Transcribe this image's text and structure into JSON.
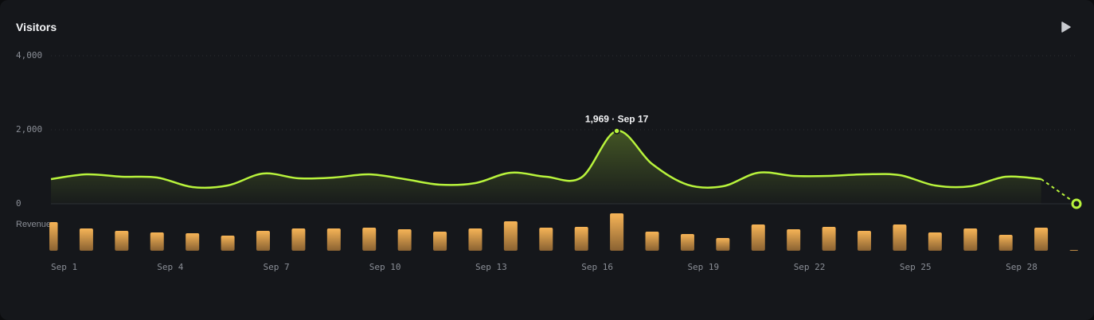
{
  "chart_data": {
    "type": "line",
    "title": "Visitors",
    "categories": [
      "Sep 1",
      null,
      null,
      "Sep 4",
      null,
      null,
      "Sep 7",
      null,
      null,
      "Sep 10",
      null,
      null,
      "Sep 13",
      null,
      null,
      "Sep 16",
      null,
      null,
      "Sep 19",
      null,
      null,
      "Sep 22",
      null,
      null,
      "Sep 25",
      null,
      null,
      "Sep 28",
      null,
      null
    ],
    "series": [
      {
        "name": "Visitors",
        "color": "#b8f33c",
        "values": [
          667,
          796,
          731,
          710,
          452,
          495,
          817,
          688,
          710,
          796,
          667,
          516,
          559,
          839,
          731,
          710,
          1969,
          1075,
          516,
          473,
          839,
          753,
          753,
          796,
          774,
          495,
          473,
          731,
          667,
          0
        ]
      },
      {
        "name": "Revenue",
        "color": "#f0a94a",
        "values": [
          36,
          28,
          25,
          23,
          22,
          19,
          25,
          28,
          28,
          29,
          27,
          24,
          28,
          37,
          29,
          30,
          47,
          24,
          21,
          16,
          33,
          27,
          30,
          25,
          33,
          23,
          28,
          20,
          29,
          1
        ]
      }
    ],
    "ylim": [
      0,
      4000
    ],
    "yticks": [
      {
        "value": 0,
        "label": "0"
      },
      {
        "value": 2000,
        "label": "2,000"
      },
      {
        "value": 4000,
        "label": "4,000"
      }
    ],
    "grid": true,
    "incomplete_last": true,
    "annotation": "1,969 · Sep 17"
  }
}
